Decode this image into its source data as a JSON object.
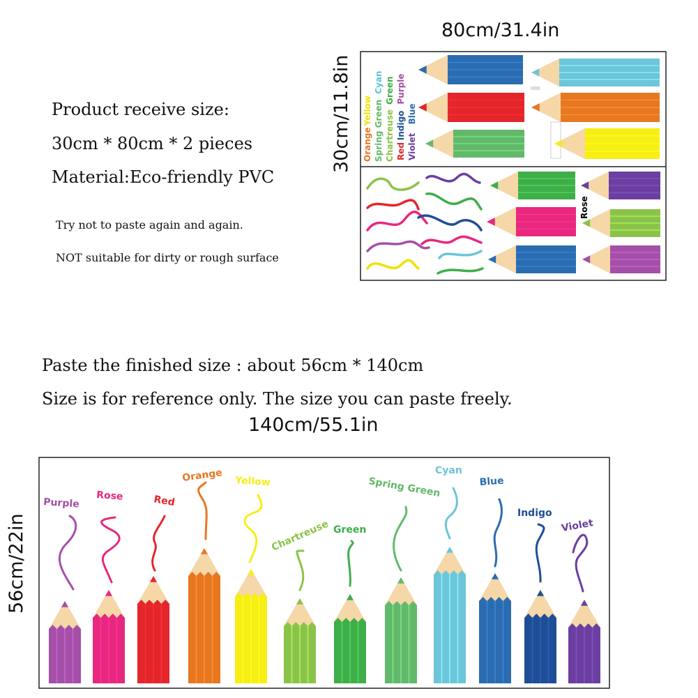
{
  "product": {
    "receive_size_label": "Product receive size:",
    "receive_size_value": "30cm * 80cm * 2 pieces",
    "material": "Material:Eco-friendly PVC",
    "note_1": "Try not to paste again and again.",
    "note_2": "NOT suitable for dirty or rough surface"
  },
  "sheet_preview": {
    "width_label": "80cm/31.4in",
    "height_label": "30cm/11.8in",
    "color_words": [
      {
        "text": "Orange",
        "color": "#E87722"
      },
      {
        "text": "Yellow",
        "color": "#F2E100"
      },
      {
        "text": "Spring Green",
        "color": "#63B96B"
      },
      {
        "text": "Cyan",
        "color": "#5BC3D6"
      },
      {
        "text": "Chartreuse",
        "color": "#8BC34A"
      },
      {
        "text": "Green",
        "color": "#3FAE49"
      },
      {
        "text": "Red",
        "color": "#E3262A"
      },
      {
        "text": "Indigo",
        "color": "#1F4E96"
      },
      {
        "text": "Purple",
        "color": "#A44FA8"
      },
      {
        "text": "Violet",
        "color": "#6B3FA0"
      },
      {
        "text": "Blue",
        "color": "#2B6CB0"
      }
    ],
    "rose_label": "Rose",
    "rose_color": "#E8287E"
  },
  "finished": {
    "size_text": "Paste the finished size : about 56cm * 140cm",
    "reference_text": "Size is for reference only. The size you can paste freely.",
    "width_label": "140cm/55.1in",
    "height_label": "56cm/22in"
  },
  "pencils": [
    {
      "name": "Purple",
      "color": "#A44FA8"
    },
    {
      "name": "Rose",
      "color": "#E8287E"
    },
    {
      "name": "Red",
      "color": "#E3262A"
    },
    {
      "name": "Orange",
      "color": "#E87722"
    },
    {
      "name": "Yellow",
      "color": "#F7EE16"
    },
    {
      "name": "Chartreuse",
      "color": "#8BC34A"
    },
    {
      "name": "Green",
      "color": "#3FAE49"
    },
    {
      "name": "Spring Green",
      "color": "#63B96B"
    },
    {
      "name": "Cyan",
      "color": "#6CC5D9"
    },
    {
      "name": "Blue",
      "color": "#2B6CB0"
    },
    {
      "name": "Indigo",
      "color": "#1F4E96"
    },
    {
      "name": "Violet",
      "color": "#6B3FA0"
    }
  ]
}
